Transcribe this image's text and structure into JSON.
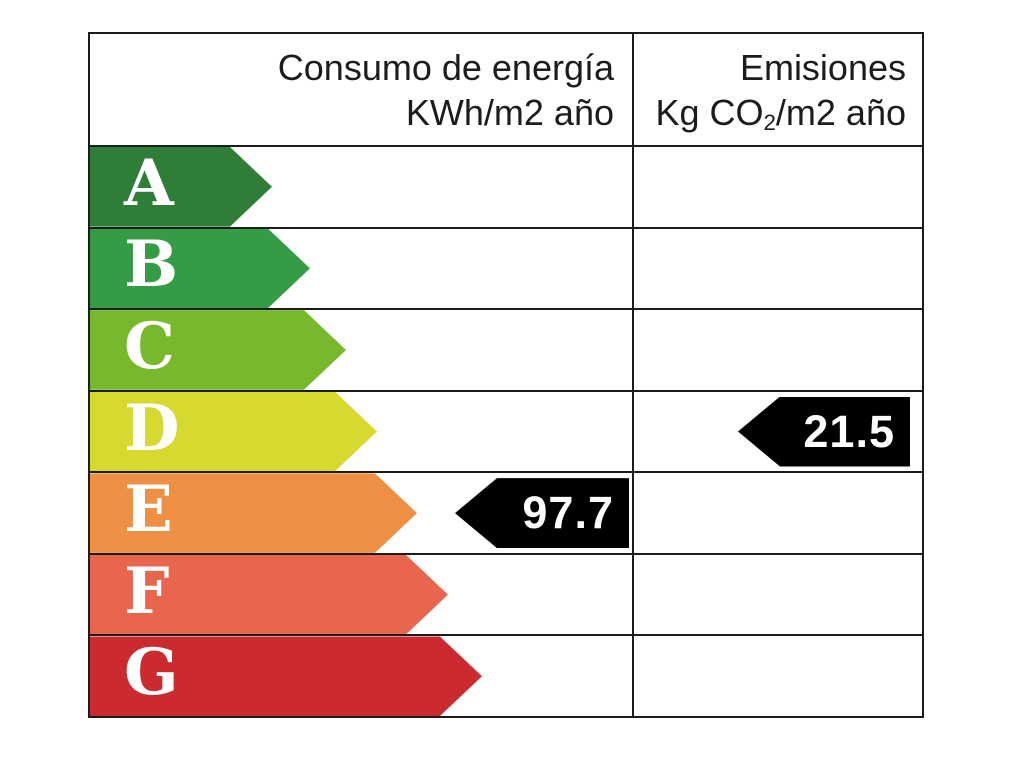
{
  "chart_data": {
    "type": "bar",
    "subtype": "energy-efficiency-rating-label",
    "title": "",
    "legend_position": "none",
    "grid": "table-borders",
    "columns": [
      {
        "id": "consumption",
        "title": "Consumo de energía",
        "unit_pre": "KWh/m2 año",
        "unit_sub": "",
        "unit_post": "",
        "unit_plain": "KWh/m2 año"
      },
      {
        "id": "emissions",
        "title": "Emisiones",
        "unit_pre": "Kg CO",
        "unit_sub": "2",
        "unit_post": "/m2 año",
        "unit_plain": "Kg CO2/m2 año"
      }
    ],
    "categories": [
      "A",
      "B",
      "C",
      "D",
      "E",
      "F",
      "G"
    ],
    "ratings": [
      {
        "letter": "A",
        "color": "#2f7e38",
        "arrow_width": 182
      },
      {
        "letter": "B",
        "color": "#359c45",
        "arrow_width": 220
      },
      {
        "letter": "C",
        "color": "#77b82d",
        "arrow_width": 256
      },
      {
        "letter": "D",
        "color": "#d5d930",
        "arrow_width": 287
      },
      {
        "letter": "E",
        "color": "#ef8f43",
        "arrow_width": 327
      },
      {
        "letter": "F",
        "color": "#e8664d",
        "arrow_width": 358
      },
      {
        "letter": "G",
        "color": "#cb2b2e",
        "arrow_width": 392
      }
    ],
    "values": [
      {
        "column": "consumption",
        "rating": "E",
        "value": "97.7",
        "numeric": 97.7
      },
      {
        "column": "emissions",
        "rating": "D",
        "value": "21.5",
        "numeric": 21.5
      }
    ],
    "value_arrow_color": "#000000",
    "value_text_color": "#ffffff",
    "border_color": "#1c1c1c",
    "background_color": "#ffffff",
    "letter_text_color": "#ffffff"
  }
}
